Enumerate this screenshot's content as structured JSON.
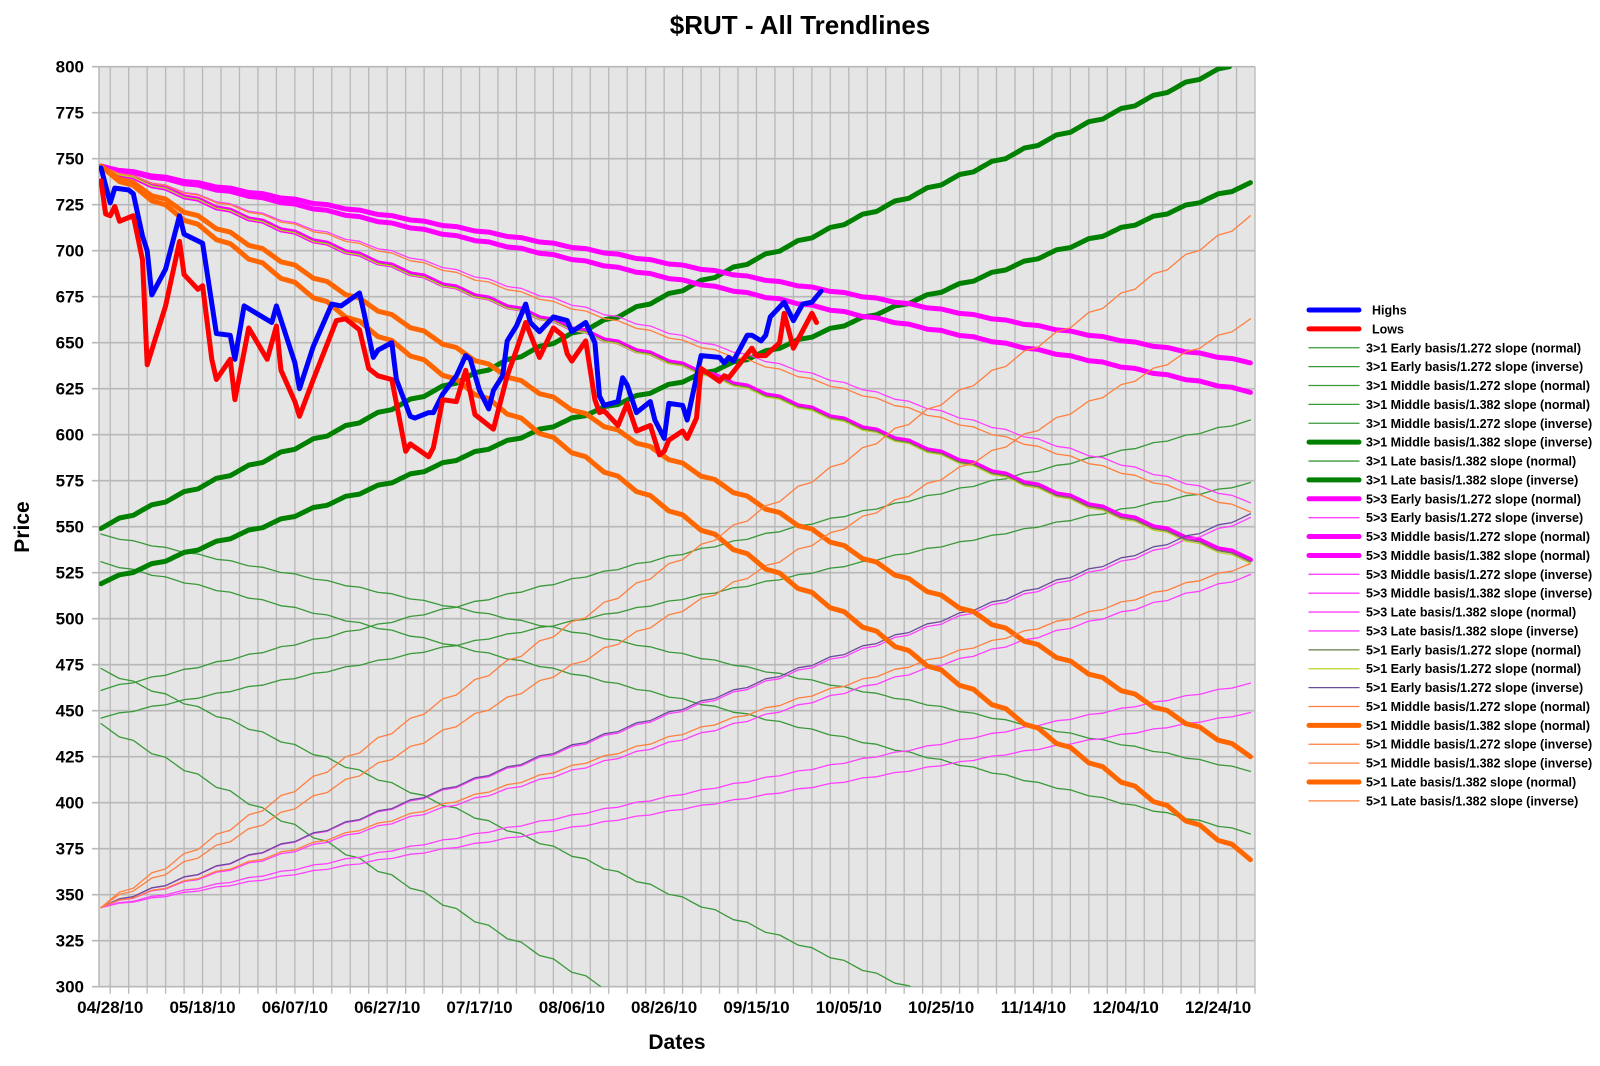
{
  "chart_data": {
    "type": "line",
    "title": "$RUT - All Trendlines",
    "xlabel": "Dates",
    "ylabel": "Price",
    "ylim": [
      300,
      800
    ],
    "xlim": [
      "2010-04-26",
      "2011-01-01"
    ],
    "grid": true,
    "legend": "right",
    "background": "#e5e5e5",
    "y_ticks": [
      "300",
      "325",
      "350",
      "375",
      "400",
      "425",
      "450",
      "475",
      "500",
      "525",
      "550",
      "575",
      "600",
      "625",
      "650",
      "675",
      "700",
      "725",
      "750",
      "775",
      "800"
    ],
    "x_ticks": [
      {
        "date": "2010-04-28",
        "label": "04/28/10"
      },
      {
        "date": "2010-05-18",
        "label": "05/18/10"
      },
      {
        "date": "2010-06-07",
        "label": "06/07/10"
      },
      {
        "date": "2010-06-27",
        "label": "06/27/10"
      },
      {
        "date": "2010-07-17",
        "label": "07/17/10"
      },
      {
        "date": "2010-08-06",
        "label": "08/06/10"
      },
      {
        "date": "2010-08-26",
        "label": "08/26/10"
      },
      {
        "date": "2010-09-15",
        "label": "09/15/10"
      },
      {
        "date": "2010-10-05",
        "label": "10/05/10"
      },
      {
        "date": "2010-10-25",
        "label": "10/25/10"
      },
      {
        "date": "2010-11-14",
        "label": "11/14/10"
      },
      {
        "date": "2010-12-04",
        "label": "12/04/10"
      },
      {
        "date": "2010-12-24",
        "label": "12/24/10"
      }
    ],
    "series": [
      {
        "name": "Highs",
        "color": "#0000ff",
        "points": [
          [
            "2010-04-26",
            745
          ],
          [
            "2010-04-28",
            726
          ],
          [
            "2010-04-29",
            734
          ],
          [
            "2010-05-02",
            733
          ],
          [
            "2010-05-03",
            731
          ],
          [
            "2010-05-05",
            708
          ],
          [
            "2010-05-06",
            700
          ],
          [
            "2010-05-07",
            676
          ],
          [
            "2010-05-10",
            690
          ],
          [
            "2010-05-13",
            719
          ],
          [
            "2010-05-14",
            709
          ],
          [
            "2010-05-18",
            704
          ],
          [
            "2010-05-21",
            655
          ],
          [
            "2010-05-24",
            654
          ],
          [
            "2010-05-25",
            641
          ],
          [
            "2010-05-27",
            670
          ],
          [
            "2010-06-02",
            661
          ],
          [
            "2010-06-03",
            670
          ],
          [
            "2010-06-07",
            639
          ],
          [
            "2010-06-08",
            625
          ],
          [
            "2010-06-11",
            648
          ],
          [
            "2010-06-15",
            671
          ],
          [
            "2010-06-17",
            670
          ],
          [
            "2010-06-21",
            677
          ],
          [
            "2010-06-22",
            666
          ],
          [
            "2010-06-24",
            642
          ],
          [
            "2010-06-25",
            646
          ],
          [
            "2010-06-28",
            650
          ],
          [
            "2010-06-29",
            630
          ],
          [
            "2010-07-02",
            610
          ],
          [
            "2010-07-03",
            609
          ],
          [
            "2010-07-06",
            612
          ],
          [
            "2010-07-07",
            612
          ],
          [
            "2010-07-09",
            622
          ],
          [
            "2010-07-12",
            632
          ],
          [
            "2010-07-14",
            643
          ],
          [
            "2010-07-15",
            641
          ],
          [
            "2010-07-17",
            624
          ],
          [
            "2010-07-19",
            614
          ],
          [
            "2010-07-20",
            624
          ],
          [
            "2010-07-22",
            632
          ],
          [
            "2010-07-23",
            651
          ],
          [
            "2010-07-25",
            659
          ],
          [
            "2010-07-27",
            671
          ],
          [
            "2010-07-28",
            661
          ],
          [
            "2010-07-30",
            656
          ],
          [
            "2010-08-02",
            664
          ],
          [
            "2010-08-05",
            662
          ],
          [
            "2010-08-06",
            656
          ],
          [
            "2010-08-09",
            661
          ],
          [
            "2010-08-11",
            650
          ],
          [
            "2010-08-12",
            621
          ],
          [
            "2010-08-13",
            616
          ],
          [
            "2010-08-16",
            618
          ],
          [
            "2010-08-17",
            631
          ],
          [
            "2010-08-18",
            627
          ],
          [
            "2010-08-20",
            612
          ],
          [
            "2010-08-23",
            618
          ],
          [
            "2010-08-24",
            608
          ],
          [
            "2010-08-26",
            598
          ],
          [
            "2010-08-27",
            617
          ],
          [
            "2010-08-30",
            616
          ],
          [
            "2010-08-31",
            608
          ],
          [
            "2010-09-03",
            643
          ],
          [
            "2010-09-07",
            642
          ],
          [
            "2010-09-08",
            639
          ],
          [
            "2010-09-09",
            642
          ],
          [
            "2010-09-10",
            640
          ],
          [
            "2010-09-13",
            654
          ],
          [
            "2010-09-14",
            654
          ],
          [
            "2010-09-16",
            651
          ],
          [
            "2010-09-17",
            654
          ],
          [
            "2010-09-18",
            664
          ],
          [
            "2010-09-21",
            672
          ],
          [
            "2010-09-23",
            662
          ],
          [
            "2010-09-25",
            671
          ],
          [
            "2010-09-27",
            672
          ],
          [
            "2010-09-29",
            678
          ]
        ]
      },
      {
        "name": "Lows",
        "color": "#ff0000",
        "points": [
          [
            "2010-04-26",
            738
          ],
          [
            "2010-04-27",
            720
          ],
          [
            "2010-04-28",
            719
          ],
          [
            "2010-04-29",
            724
          ],
          [
            "2010-04-30",
            716
          ],
          [
            "2010-05-03",
            719
          ],
          [
            "2010-05-05",
            695
          ],
          [
            "2010-05-06",
            638
          ],
          [
            "2010-05-10",
            670
          ],
          [
            "2010-05-13",
            705
          ],
          [
            "2010-05-14",
            687
          ],
          [
            "2010-05-17",
            679
          ],
          [
            "2010-05-18",
            681
          ],
          [
            "2010-05-20",
            641
          ],
          [
            "2010-05-21",
            630
          ],
          [
            "2010-05-24",
            641
          ],
          [
            "2010-05-25",
            619
          ],
          [
            "2010-05-28",
            658
          ],
          [
            "2010-06-01",
            641
          ],
          [
            "2010-06-03",
            659
          ],
          [
            "2010-06-04",
            635
          ],
          [
            "2010-06-07",
            618
          ],
          [
            "2010-06-08",
            610
          ],
          [
            "2010-06-11",
            630
          ],
          [
            "2010-06-16",
            662
          ],
          [
            "2010-06-18",
            663
          ],
          [
            "2010-06-21",
            657
          ],
          [
            "2010-06-23",
            636
          ],
          [
            "2010-06-25",
            632
          ],
          [
            "2010-06-28",
            630
          ],
          [
            "2010-07-01",
            591
          ],
          [
            "2010-07-02",
            595
          ],
          [
            "2010-07-06",
            588
          ],
          [
            "2010-07-07",
            593
          ],
          [
            "2010-07-09",
            619
          ],
          [
            "2010-07-12",
            618
          ],
          [
            "2010-07-14",
            635
          ],
          [
            "2010-07-16",
            611
          ],
          [
            "2010-07-20",
            603
          ],
          [
            "2010-07-23",
            632
          ],
          [
            "2010-07-25",
            646
          ],
          [
            "2010-07-27",
            661
          ],
          [
            "2010-07-30",
            642
          ],
          [
            "2010-08-02",
            658
          ],
          [
            "2010-08-04",
            654
          ],
          [
            "2010-08-05",
            644
          ],
          [
            "2010-08-06",
            640
          ],
          [
            "2010-08-09",
            651
          ],
          [
            "2010-08-11",
            619
          ],
          [
            "2010-08-12",
            612
          ],
          [
            "2010-08-13",
            613
          ],
          [
            "2010-08-16",
            605
          ],
          [
            "2010-08-18",
            617
          ],
          [
            "2010-08-20",
            602
          ],
          [
            "2010-08-23",
            605
          ],
          [
            "2010-08-25",
            589
          ],
          [
            "2010-08-26",
            591
          ],
          [
            "2010-08-27",
            597
          ],
          [
            "2010-08-30",
            602
          ],
          [
            "2010-08-31",
            598
          ],
          [
            "2010-09-02",
            609
          ],
          [
            "2010-09-03",
            636
          ],
          [
            "2010-09-07",
            629
          ],
          [
            "2010-09-08",
            632
          ],
          [
            "2010-09-09",
            631
          ],
          [
            "2010-09-14",
            647
          ],
          [
            "2010-09-15",
            643
          ],
          [
            "2010-09-17",
            643
          ],
          [
            "2010-09-20",
            650
          ],
          [
            "2010-09-21",
            666
          ],
          [
            "2010-09-23",
            647
          ],
          [
            "2010-09-27",
            666
          ],
          [
            "2010-09-28",
            661
          ]
        ]
      },
      {
        "name": "3>1 Early basis/1.272 slope (normal)",
        "color": "#3a993a",
        "points": [
          [
            "2010-04-26",
            546
          ],
          [
            "2010-12-31",
            417
          ]
        ]
      },
      {
        "name": "3>1 Early basis/1.272 slope (inverse)",
        "color": "#3a993a",
        "points": [
          [
            "2010-04-26",
            461
          ],
          [
            "2010-12-31",
            608
          ]
        ]
      },
      {
        "name": "3>1 Middle basis/1.272 slope (normal)",
        "color": "#3a993a",
        "points": [
          [
            "2010-04-26",
            531
          ],
          [
            "2010-12-31",
            383
          ]
        ]
      },
      {
        "name": "3>1 Middle basis/1.382 slope (normal)",
        "color": "#3a993a",
        "points": [
          [
            "2010-04-26",
            473
          ],
          [
            "2010-12-31",
            226
          ]
        ]
      },
      {
        "name": "3>1 Middle basis/1.272 slope (inverse)",
        "color": "#3a993a",
        "points": [
          [
            "2010-04-26",
            446
          ],
          [
            "2010-12-31",
            574
          ]
        ]
      },
      {
        "name": "3>1 Middle basis/1.382 slope (inverse)",
        "color": "#008000",
        "points": [
          [
            "2010-04-26",
            549
          ],
          [
            "2010-12-31",
            806
          ]
        ]
      },
      {
        "name": "3>1 Late basis/1.382 slope (normal)",
        "color": "#3a993a",
        "points": [
          [
            "2010-04-26",
            443
          ],
          [
            "2010-12-31",
            116
          ]
        ]
      },
      {
        "name": "3>1 Late basis/1.382 slope (inverse)",
        "color": "#008000",
        "points": [
          [
            "2010-04-26",
            519
          ],
          [
            "2010-12-31",
            737
          ]
        ]
      },
      {
        "name": "5>3 Early basis/1.272 slope (normal)",
        "color": "#ff00ff",
        "points": [
          [
            "2010-04-26",
            746
          ],
          [
            "2010-12-31",
            639
          ]
        ]
      },
      {
        "name": "5>3 Early basis/1.272 slope (inverse)",
        "color": "#ff40ff",
        "points": [
          [
            "2010-04-26",
            343
          ],
          [
            "2010-12-31",
            465
          ]
        ]
      },
      {
        "name": "5>3 Middle basis/1.272 slope (normal)",
        "color": "#ff00ff",
        "points": [
          [
            "2010-04-26",
            746
          ],
          [
            "2010-12-31",
            623
          ]
        ]
      },
      {
        "name": "5>3 Middle basis/1.382 slope (normal)",
        "color": "#ff00ff",
        "points": [
          [
            "2010-04-26",
            746
          ],
          [
            "2010-12-31",
            532
          ]
        ]
      },
      {
        "name": "5>3 Middle basis/1.272 slope (inverse)",
        "color": "#ff40ff",
        "points": [
          [
            "2010-04-26",
            343
          ],
          [
            "2010-12-31",
            449
          ]
        ]
      },
      {
        "name": "5>3 Middle basis/1.382 slope (inverse)",
        "color": "#ff40ff",
        "points": [
          [
            "2010-04-26",
            343
          ],
          [
            "2010-12-31",
            524
          ]
        ]
      },
      {
        "name": "5>3 Late basis/1.382 slope (normal)",
        "color": "#ff40ff",
        "points": [
          [
            "2010-04-26",
            746
          ],
          [
            "2010-12-31",
            563
          ]
        ]
      },
      {
        "name": "5>3 Late basis/1.382 slope (inverse)",
        "color": "#ff40ff",
        "points": [
          [
            "2010-04-26",
            343
          ],
          [
            "2010-12-31",
            555
          ]
        ]
      },
      {
        "name": "5>1 Early basis/1.272 slope (normal)",
        "color": "#667a4a",
        "points": [
          [
            "2010-04-26",
            746
          ],
          [
            "2010-12-31",
            531
          ]
        ]
      },
      {
        "name": "5>1 Early basis/1.272 slope (normal)",
        "color": "#b5d52a",
        "points": [
          [
            "2010-04-26",
            746
          ],
          [
            "2010-12-31",
            530
          ]
        ]
      },
      {
        "name": "5>1 Early basis/1.272 slope (inverse)",
        "color": "#6b4c9a",
        "points": [
          [
            "2010-04-26",
            343
          ],
          [
            "2010-12-31",
            557
          ]
        ]
      },
      {
        "name": "5>1 Middle basis/1.272 slope (normal)",
        "color": "#ff7f3f",
        "points": [
          [
            "2010-04-26",
            746
          ],
          [
            "2010-12-31",
            558
          ]
        ]
      },
      {
        "name": "5>1 Middle basis/1.382 slope (normal)",
        "color": "#ff6600",
        "points": [
          [
            "2010-04-26",
            746
          ],
          [
            "2010-12-31",
            425
          ]
        ]
      },
      {
        "name": "5>1 Middle basis/1.272 slope (inverse)",
        "color": "#ff7f3f",
        "points": [
          [
            "2010-04-26",
            343
          ],
          [
            "2010-12-31",
            530
          ]
        ]
      },
      {
        "name": "5>1 Middle basis/1.382 slope (inverse)",
        "color": "#ff7f3f",
        "points": [
          [
            "2010-04-26",
            343
          ],
          [
            "2010-12-31",
            663
          ]
        ]
      },
      {
        "name": "5>1 Late basis/1.382 slope (normal)",
        "color": "#ff6600",
        "points": [
          [
            "2010-04-26",
            746
          ],
          [
            "2010-12-31",
            369
          ]
        ]
      },
      {
        "name": "5>1 Late basis/1.382 slope (inverse)",
        "color": "#ff7f3f",
        "points": [
          [
            "2010-04-26",
            343
          ],
          [
            "2010-12-31",
            719
          ]
        ]
      }
    ]
  }
}
